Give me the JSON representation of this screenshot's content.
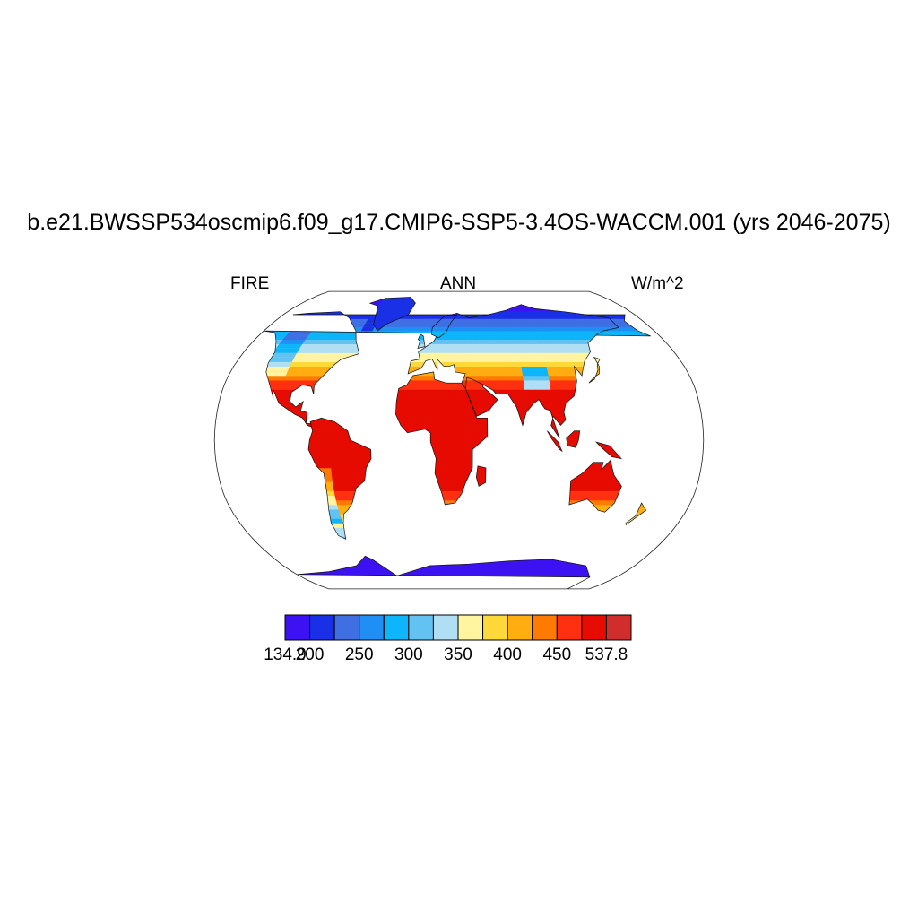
{
  "title": "b.e21.BWSSP534oscmip6.f09_g17.CMIP6-SSP5-3.4OS-WACCM.001 (yrs 2046-2075)",
  "left_label": "FIRE",
  "center_label": "ANN",
  "right_label": "W/m^2",
  "colorbar": {
    "min": 134.9,
    "max": 537.8,
    "levels": [
      200,
      225,
      250,
      275,
      300,
      325,
      350,
      375,
      400,
      425,
      450,
      475
    ],
    "tick_labels": [
      "134.9",
      "200",
      "250",
      "300",
      "350",
      "400",
      "450",
      "537.8"
    ],
    "colors": [
      "#3c12f2",
      "#1a30e6",
      "#3f6fe3",
      "#1f8ff5",
      "#0db5fa",
      "#62c2f2",
      "#b0def2",
      "#fff5a0",
      "#ffd93a",
      "#ffad10",
      "#ff7a00",
      "#ff3010",
      "#e60b00",
      "#d22d2d"
    ]
  },
  "map": {
    "projection": "Robinson",
    "variable": "FIRE",
    "season": "ANN",
    "units": "W/m^2"
  }
}
